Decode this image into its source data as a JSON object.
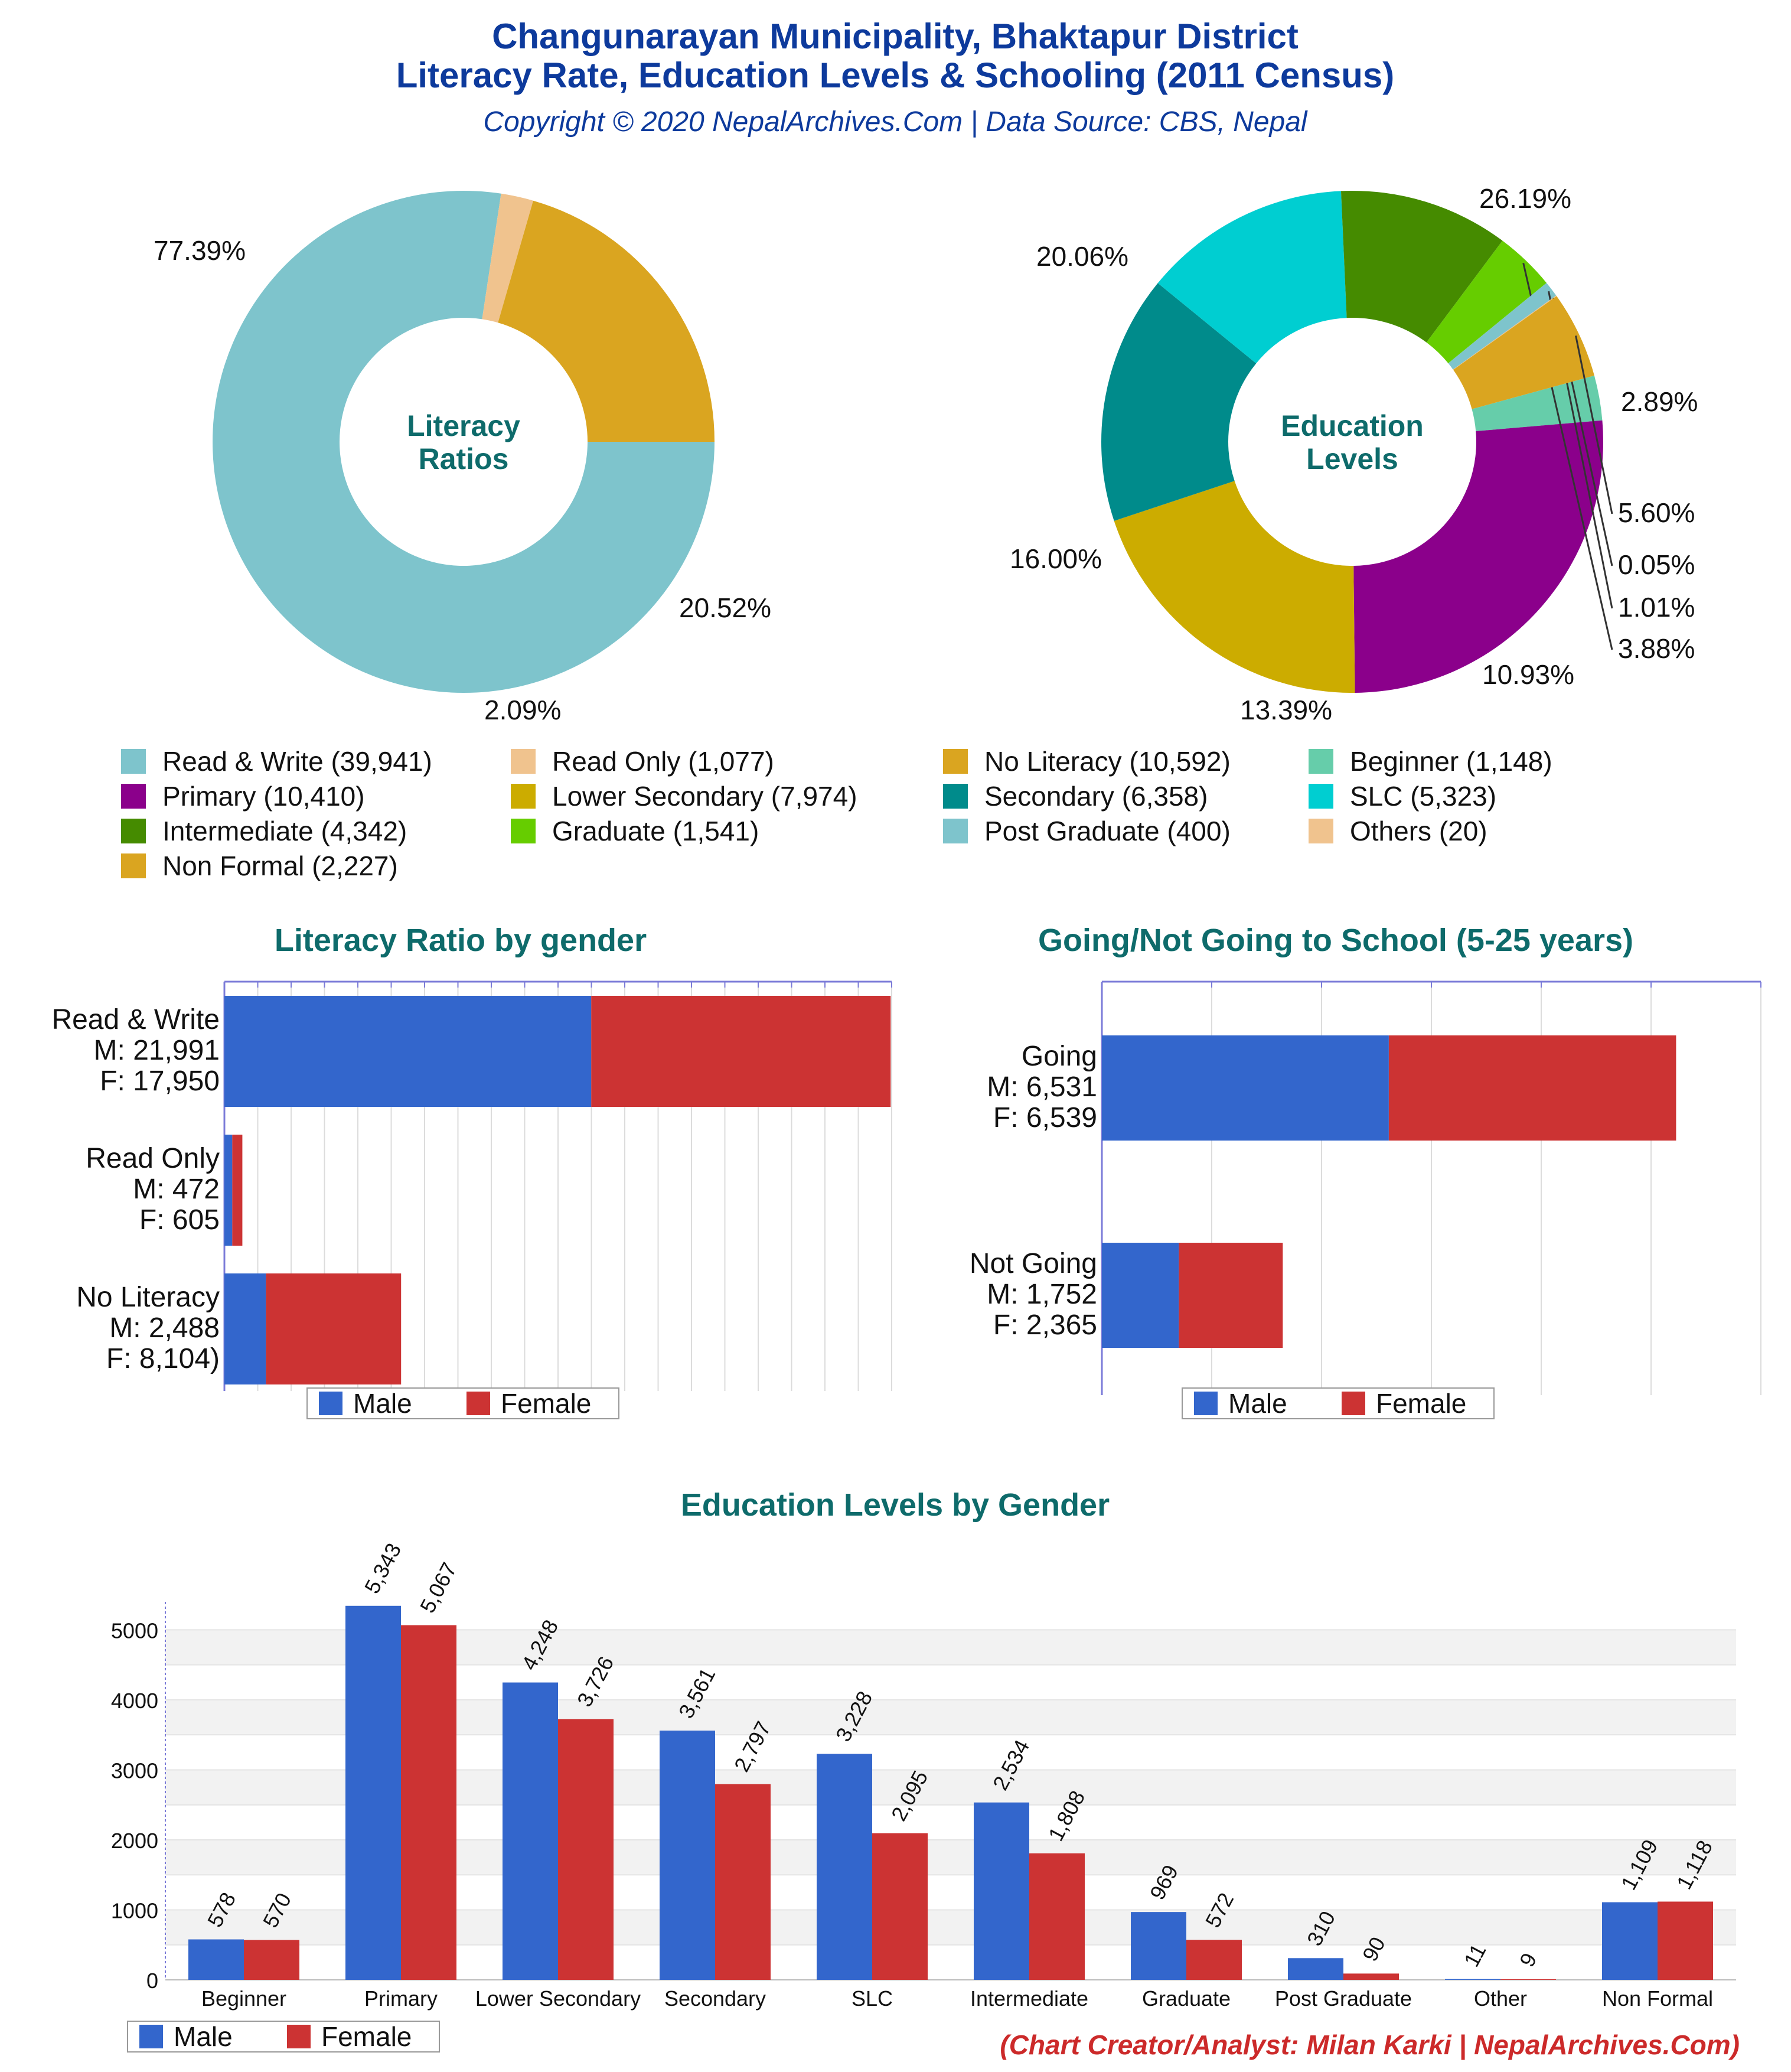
{
  "header": {
    "title_line1": "Changunarayan Municipality, Bhaktapur District",
    "title_line2": "Literacy Rate, Education Levels & Schooling (2011 Census)",
    "subtitle": "Copyright © 2020 NepalArchives.Com | Data Source: CBS, Nepal"
  },
  "footer": {
    "credit": "(Chart Creator/Analyst: Milan Karki | NepalArchives.Com)"
  },
  "legend_labels": {
    "male": "Male",
    "female": "Female"
  },
  "chart_data": [
    {
      "id": "literacy_donut",
      "type": "pie",
      "center_label": [
        "Literacy",
        "Ratios"
      ],
      "slices": [
        {
          "label": "Read & Write (39,941)",
          "value": 39941,
          "pct": "77.39%",
          "color": "#7ec4cc"
        },
        {
          "label": "Read Only (1,077)",
          "value": 1077,
          "pct": "2.09%",
          "color": "#f0c38e"
        },
        {
          "label": "No Literacy (10,592)",
          "value": 10592,
          "pct": "20.52%",
          "color": "#daa520"
        }
      ]
    },
    {
      "id": "education_donut",
      "type": "pie",
      "center_label": [
        "Education",
        "Levels"
      ],
      "slices": [
        {
          "label": "Beginner (1,148)",
          "value": 1148,
          "pct": "2.89%",
          "color": "#66cdaa"
        },
        {
          "label": "Primary (10,410)",
          "value": 10410,
          "pct": "26.19%",
          "color": "#8b008b"
        },
        {
          "label": "Lower Secondary (7,974)",
          "value": 7974,
          "pct": "20.06%",
          "color": "#ccac00"
        },
        {
          "label": "Secondary (6,358)",
          "value": 6358,
          "pct": "16.00%",
          "color": "#008b8b"
        },
        {
          "label": "SLC (5,323)",
          "value": 5323,
          "pct": "13.39%",
          "color": "#00ced1"
        },
        {
          "label": "Intermediate (4,342)",
          "value": 4342,
          "pct": "10.93%",
          "color": "#458b00"
        },
        {
          "label": "Graduate (1,541)",
          "value": 1541,
          "pct": "3.88%",
          "color": "#66cd00"
        },
        {
          "label": "Post Graduate (400)",
          "value": 400,
          "pct": "1.01%",
          "color": "#7ec4cc"
        },
        {
          "label": "Others (20)",
          "value": 20,
          "pct": "0.05%",
          "color": "#f0c38e"
        },
        {
          "label": "Non Formal (2,227)",
          "value": 2227,
          "pct": "5.60%",
          "color": "#daa520"
        }
      ]
    },
    {
      "id": "literacy_gender",
      "type": "bar",
      "orientation": "horizontal",
      "stacked": true,
      "title": "Literacy Ratio by gender",
      "categories": [
        [
          "Read & Write",
          "M: 21,991",
          "F: 17,950"
        ],
        [
          "Read Only",
          "M: 472",
          "F: 605"
        ],
        [
          "No Literacy",
          "M: 2,488",
          "F: 8,104)"
        ]
      ],
      "series": [
        {
          "name": "Male",
          "color": "#3366cc",
          "values": [
            21991,
            472,
            2488
          ]
        },
        {
          "name": "Female",
          "color": "#cc3333",
          "values": [
            17950,
            605,
            8104
          ]
        }
      ],
      "xlim": [
        0,
        40000
      ]
    },
    {
      "id": "school_gender",
      "type": "bar",
      "orientation": "horizontal",
      "stacked": true,
      "title": "Going/Not Going to School (5-25 years)",
      "categories": [
        [
          "Going",
          "M: 6,531",
          "F: 6,539"
        ],
        [
          "Not Going",
          "M: 1,752",
          "F: 2,365"
        ]
      ],
      "series": [
        {
          "name": "Male",
          "color": "#3366cc",
          "values": [
            6531,
            1752
          ]
        },
        {
          "name": "Female",
          "color": "#cc3333",
          "values": [
            6539,
            2365
          ]
        }
      ],
      "xlim": [
        0,
        15000
      ]
    },
    {
      "id": "education_gender",
      "type": "bar",
      "title": "Education Levels by Gender",
      "categories": [
        "Beginner",
        "Primary",
        "Lower Secondary",
        "Secondary",
        "SLC",
        "Intermediate",
        "Graduate",
        "Post Graduate",
        "Other",
        "Non Formal"
      ],
      "series": [
        {
          "name": "Male",
          "color": "#3366cc",
          "values": [
            578,
            5343,
            4248,
            3561,
            3228,
            2534,
            969,
            310,
            11,
            1109
          ],
          "labels": [
            "578",
            "5,343",
            "4,248",
            "3,561",
            "3,228",
            "2,534",
            "969",
            "310",
            "11",
            "1,109"
          ]
        },
        {
          "name": "Female",
          "color": "#cc3333",
          "values": [
            570,
            5067,
            3726,
            2797,
            2095,
            1808,
            572,
            90,
            9,
            1118
          ],
          "labels": [
            "570",
            "5,067",
            "3,726",
            "2,797",
            "2,095",
            "1,808",
            "572",
            "90",
            "9",
            "1,118"
          ]
        }
      ],
      "yticks": [
        "0",
        "1000",
        "2000",
        "3000",
        "4000",
        "5000"
      ],
      "ylim": [
        0,
        5400
      ],
      "grid": true
    }
  ]
}
